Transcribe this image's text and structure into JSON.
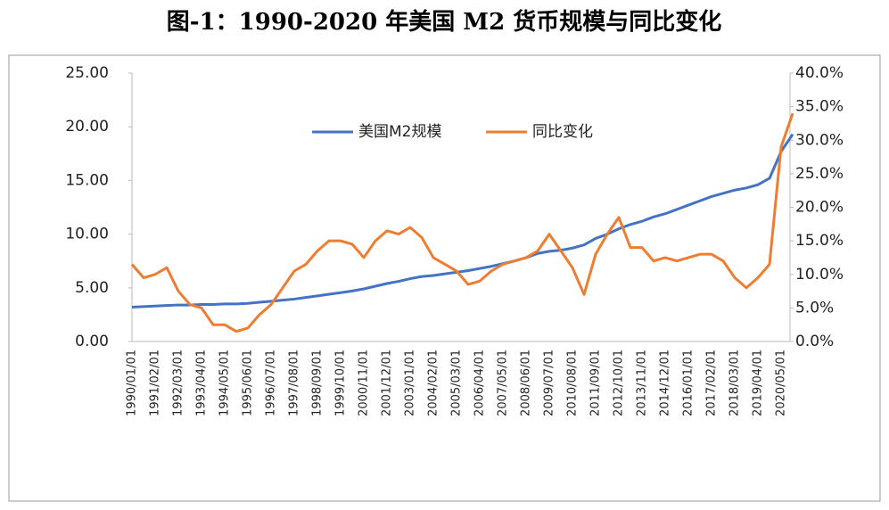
{
  "chart_data": {
    "type": "line",
    "title": "图-1：1990-2020 年美国 M2 货币规模与同比变化",
    "categories": [
      "1990/01/01",
      null,
      "1991/02/01",
      null,
      "1992/03/01",
      null,
      "1993/04/01",
      null,
      "1994/05/01",
      null,
      "1995/06/01",
      null,
      "1996/07/01",
      null,
      "1997/08/01",
      null,
      "1998/09/01",
      null,
      "1999/10/01",
      null,
      "2000/11/01",
      null,
      "2001/12/01",
      null,
      "2003/01/01",
      null,
      "2004/02/01",
      null,
      "2005/03/01",
      null,
      "2006/04/01",
      null,
      "2007/05/01",
      null,
      "2008/06/01",
      null,
      "2009/07/01",
      null,
      "2010/08/01",
      null,
      "2011/09/01",
      null,
      "2012/10/01",
      null,
      "2013/11/01",
      null,
      "2014/12/01",
      null,
      "2016/01/01",
      null,
      "2017/02/01",
      null,
      "2018/03/01",
      null,
      "2019/04/01",
      null,
      "2020/05/01",
      null
    ],
    "series": [
      {
        "name": "美国M2规模",
        "color": "#4472c4",
        "values": [
          3.2,
          3.25,
          3.3,
          3.35,
          3.4,
          3.4,
          3.45,
          3.45,
          3.5,
          3.5,
          3.55,
          3.65,
          3.75,
          3.85,
          3.95,
          4.1,
          4.25,
          4.4,
          4.55,
          4.7,
          4.9,
          5.15,
          5.4,
          5.6,
          5.85,
          6.05,
          6.15,
          6.3,
          6.45,
          6.6,
          6.8,
          7.0,
          7.25,
          7.5,
          7.8,
          8.2,
          8.4,
          8.5,
          8.7,
          9.0,
          9.6,
          10.0,
          10.5,
          10.9,
          11.2,
          11.6,
          11.9,
          12.3,
          12.7,
          13.1,
          13.5,
          13.8,
          14.1,
          14.3,
          14.6,
          15.2,
          17.7,
          19.3
        ]
      },
      {
        "name": "同比变化",
        "color": "#ed7d31",
        "axis": "y2",
        "values": [
          11.5,
          9.5,
          10.0,
          11.0,
          7.5,
          5.5,
          5.0,
          2.5,
          2.5,
          1.5,
          2.0,
          4.0,
          5.5,
          8.0,
          10.5,
          11.5,
          13.5,
          15.0,
          15.0,
          14.5,
          12.5,
          15.0,
          16.5,
          16.0,
          17.0,
          15.5,
          12.5,
          11.5,
          10.5,
          8.5,
          9.0,
          10.5,
          11.5,
          12.0,
          12.5,
          13.5,
          16.0,
          13.5,
          11.0,
          7.0,
          13.0,
          16.0,
          18.5,
          14.0,
          14.0,
          12.0,
          12.5,
          12.0,
          12.5,
          13.0,
          13.0,
          12.0,
          9.5,
          8.0,
          9.5,
          11.5,
          29.0,
          34.0
        ]
      }
    ],
    "ylim": [
      0,
      25
    ],
    "yticks": [
      {
        "value": 0,
        "label": "0.00"
      },
      {
        "value": 5,
        "label": "5.00"
      },
      {
        "value": 10,
        "label": "10.00"
      },
      {
        "value": 15,
        "label": "15.00"
      },
      {
        "value": 20,
        "label": "20.00"
      },
      {
        "value": 25,
        "label": "25.00"
      }
    ],
    "y2lim": [
      0,
      40
    ],
    "y2ticks": [
      {
        "value": 0,
        "label": "0.0%"
      },
      {
        "value": 5,
        "label": "5.0%"
      },
      {
        "value": 10,
        "label": "10.0%"
      },
      {
        "value": 15,
        "label": "15.0%"
      },
      {
        "value": 20,
        "label": "20.0%"
      },
      {
        "value": 25,
        "label": "25.0%"
      },
      {
        "value": 30,
        "label": "30.0%"
      },
      {
        "value": 35,
        "label": "35.0%"
      },
      {
        "value": 40,
        "label": "40.0%"
      }
    ],
    "legend": "top"
  }
}
